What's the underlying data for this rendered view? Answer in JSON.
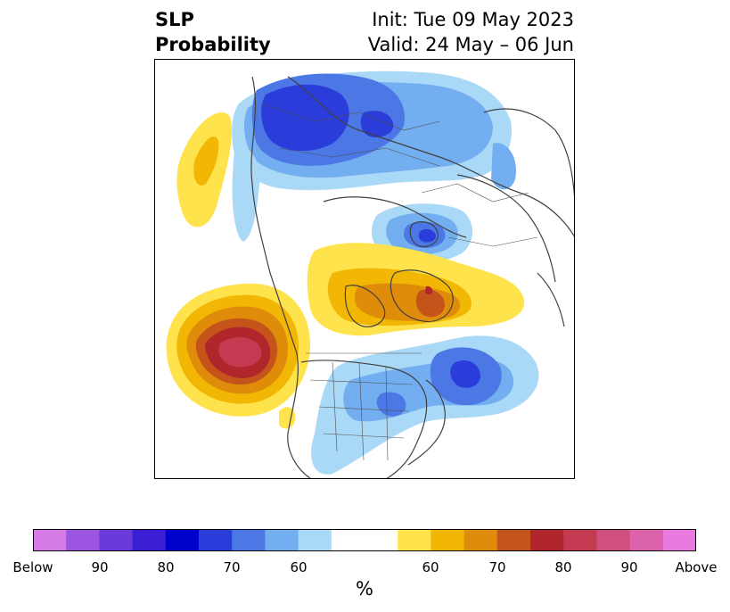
{
  "title": {
    "left_line1": "SLP",
    "left_line2": "Probability",
    "right_line1": "Init: Tue 09 May 2023",
    "right_line2": "Valid: 24 May – 06 Jun"
  },
  "colorbar": {
    "label": "%",
    "ticks": [
      "Below",
      "90",
      "80",
      "70",
      "60",
      "60",
      "70",
      "80",
      "90",
      "Above"
    ],
    "colors": [
      "#d67ae6",
      "#9b55e0",
      "#6a39d9",
      "#3a1fd4",
      "#0000cc",
      "#2a3ddb",
      "#4c78e6",
      "#73aef0",
      "#aad9f7",
      "#ffffff",
      "#ffffff",
      "#ffe34d",
      "#f2b705",
      "#e08c0b",
      "#c4541a",
      "#b0262a",
      "#c43a50",
      "#cf4f7f",
      "#dd62ac",
      "#e87ae0"
    ]
  },
  "palette": {
    "below": [
      "#aad9f7",
      "#73aef0",
      "#4c78e6",
      "#2a3ddb",
      "#0000cc"
    ],
    "above": [
      "#ffe34d",
      "#f2b705",
      "#e08c0b",
      "#c4541a",
      "#b0262a",
      "#c43a50"
    ]
  }
}
